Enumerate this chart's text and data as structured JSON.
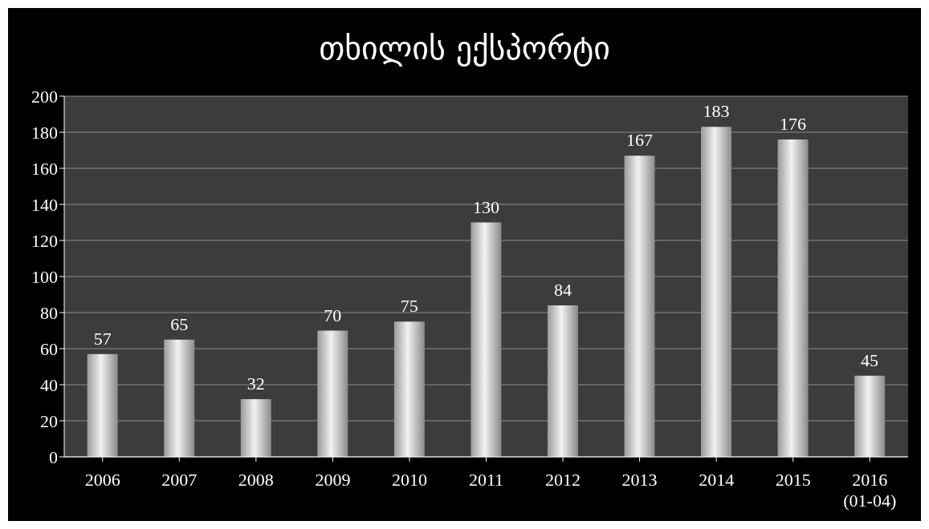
{
  "chart_data": {
    "type": "bar",
    "title": "თხილის ექსპორტი",
    "categories": [
      "2006",
      "2007",
      "2008",
      "2009",
      "2010",
      "2011",
      "2012",
      "2013",
      "2014",
      "2015",
      "2016\n(01-04)"
    ],
    "values": [
      57,
      65,
      32,
      70,
      75,
      130,
      84,
      167,
      183,
      176,
      45
    ],
    "color": "#f2f2f2",
    "ylim": [
      0,
      200
    ],
    "yticks": [
      0,
      20,
      40,
      60,
      80,
      100,
      120,
      140,
      160,
      180,
      200
    ],
    "grid": "y",
    "data_labels": true
  }
}
